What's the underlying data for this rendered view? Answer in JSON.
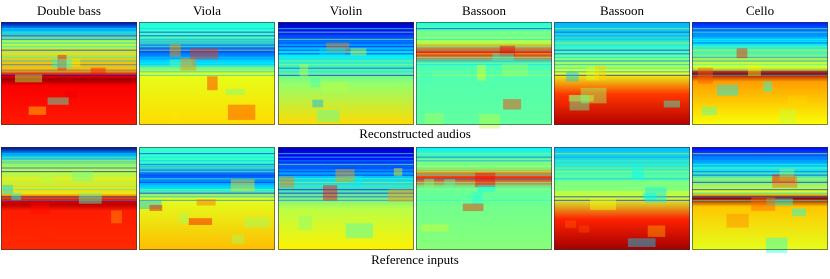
{
  "columns": [
    "Double bass",
    "Viola",
    "Violin",
    "Bassoon",
    "Bassoon",
    "Cello"
  ],
  "rows": [
    {
      "caption": "Reconstructed audios"
    },
    {
      "caption": "Reference inputs"
    }
  ]
}
